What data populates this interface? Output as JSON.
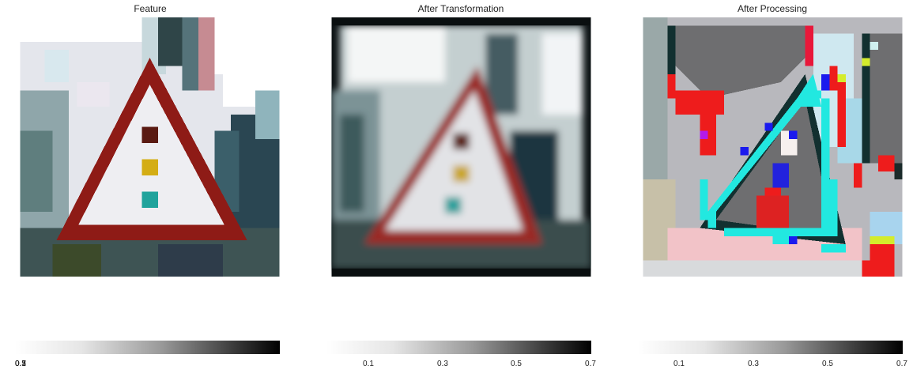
{
  "chart_data": [
    {
      "type": "image",
      "title": "Feature",
      "colorbar": {
        "colormap": "gray_r",
        "ticks": [
          "0.1",
          "0.3",
          "0.5",
          "0.7"
        ]
      }
    },
    {
      "type": "image",
      "title": "After Transformation",
      "colorbar": {
        "colormap": "gray_r",
        "ticks": [
          "0.1",
          "0.3",
          "0.5",
          "0.7"
        ]
      }
    },
    {
      "type": "image",
      "title": "After Processing",
      "colorbar": {
        "colormap": "gray_r",
        "ticks": [
          "0.1",
          "0.3",
          "0.5",
          "0.7"
        ]
      }
    }
  ],
  "colors": {
    "sign_red": "#8e1b16",
    "sign_white": "#eeeef2",
    "light_top": "#5a1a12",
    "light_mid": "#d4ad14",
    "light_bottom": "#1fa39c",
    "processing_cyan": "#22e8e0",
    "processing_red": "#ee1c1c",
    "processing_gray": "#6e6e70"
  }
}
